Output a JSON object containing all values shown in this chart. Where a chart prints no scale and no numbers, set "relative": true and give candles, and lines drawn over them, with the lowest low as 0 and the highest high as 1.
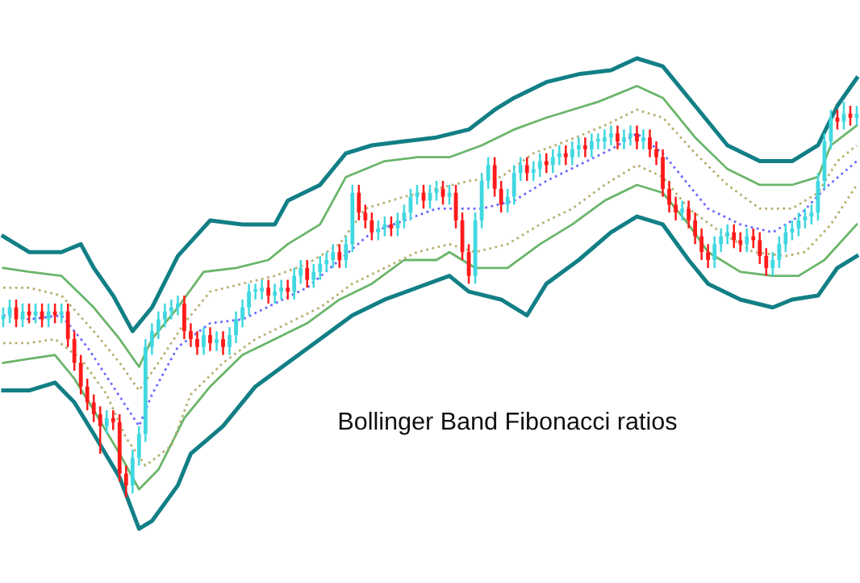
{
  "chart_data": {
    "type": "candlestick",
    "relative": true,
    "tick_labels": false,
    "legend": false,
    "annotations": [
      "Bollinger Band Fibonacci ratios"
    ],
    "categories": [
      null,
      null,
      null,
      null,
      null,
      null,
      null,
      null,
      null,
      null,
      null,
      null,
      null,
      null,
      null,
      null,
      null,
      null,
      null,
      null,
      null,
      null,
      null,
      null,
      null,
      null,
      null,
      null,
      null,
      null,
      null,
      null,
      null,
      null,
      null,
      null,
      null,
      null,
      null,
      null,
      null,
      null,
      null,
      null,
      null,
      null,
      null,
      null,
      null,
      null,
      null,
      null,
      null,
      null,
      null,
      null,
      null,
      null,
      null,
      null,
      null,
      null,
      null,
      null,
      null,
      null,
      null,
      null,
      null,
      null,
      null,
      null,
      null,
      null,
      null,
      null,
      null,
      null,
      null,
      null,
      null,
      null,
      null,
      null,
      null,
      null,
      null,
      null,
      null,
      null,
      null,
      null,
      null,
      null,
      null,
      null,
      null,
      null,
      null,
      null,
      null,
      null,
      null,
      null,
      null,
      null,
      null,
      null,
      null,
      null,
      null,
      null,
      null,
      null,
      null,
      null,
      null,
      null,
      null,
      null,
      null,
      null,
      null,
      null,
      null,
      null,
      null,
      null,
      null,
      null,
      null,
      null,
      null
    ],
    "colors": [
      "#40d8e0",
      "#40d8e0",
      "#ff1a1a",
      "#40d8e0",
      "#ff1a1a",
      "#40d8e0",
      "#ff1a1a",
      "#40d8e0",
      "#ff1a1a",
      "#40d8e0",
      "#ff1a1a",
      "#ff1a1a",
      "#ff1a1a",
      "#ff1a1a",
      "#ff1a1a",
      "#ff1a1a",
      "#40d8e0",
      "#ff1a1a",
      "#ff1a1a",
      "#ff1a1a",
      "#40d8e0",
      "#40d8e0",
      "#40d8e0",
      "#40d8e0",
      "#40d8e0",
      "#40d8e0",
      "#40d8e0",
      "#40d8e0",
      "#ff1a1a",
      "#ff1a1a",
      "#ff1a1a",
      "#40d8e0",
      "#ff1a1a",
      "#40d8e0",
      "#ff1a1a",
      "#40d8e0",
      "#40d8e0",
      "#40d8e0",
      "#40d8e0",
      "#40d8e0",
      "#40d8e0",
      "#ff1a1a",
      "#40d8e0",
      "#40d8e0",
      "#ff1a1a",
      "#40d8e0",
      "#40d8e0",
      "#ff1a1a",
      "#40d8e0",
      "#40d8e0",
      "#40d8e0",
      "#40d8e0",
      "#ff1a1a",
      "#40d8e0",
      "#40d8e0",
      "#ff1a1a",
      "#ff1a1a",
      "#ff1a1a",
      "#40d8e0",
      "#40d8e0",
      "#ff1a1a",
      "#40d8e0",
      "#40d8e0",
      "#40d8e0",
      "#40d8e0",
      "#ff1a1a",
      "#40d8e0",
      "#40d8e0",
      "#ff1a1a",
      "#40d8e0",
      "#ff1a1a",
      "#ff1a1a",
      "#ff1a1a",
      "#40d8e0",
      "#40d8e0",
      "#40d8e0",
      "#ff1a1a",
      "#ff1a1a",
      "#40d8e0",
      "#40d8e0",
      "#40d8e0",
      "#ff1a1a",
      "#40d8e0",
      "#40d8e0",
      "#ff1a1a",
      "#40d8e0",
      "#40d8e0",
      "#ff1a1a",
      "#40d8e0",
      "#40d8e0",
      "#ff1a1a",
      "#40d8e0",
      "#40d8e0",
      "#40d8e0",
      "#40d8e0",
      "#ff1a1a",
      "#40d8e0",
      "#40d8e0",
      "#ff1a1a",
      "#40d8e0",
      "#ff1a1a",
      "#ff1a1a",
      "#ff1a1a",
      "#ff1a1a",
      "#ff1a1a",
      "#40d8e0",
      "#ff1a1a",
      "#ff1a1a",
      "#ff1a1a",
      "#ff1a1a",
      "#40d8e0",
      "#40d8e0",
      "#40d8e0",
      "#ff1a1a",
      "#ff1a1a",
      "#40d8e0",
      "#ff1a1a",
      "#ff1a1a",
      "#ff1a1a",
      "#40d8e0",
      "#40d8e0",
      "#40d8e0",
      "#40d8e0",
      "#40d8e0",
      "#40d8e0",
      "#40d8e0",
      "#40d8e0",
      "#40d8e0",
      "#40d8e0",
      "#ff1a1a",
      "#40d8e0",
      "#ff1a1a",
      "#40d8e0"
    ],
    "ohlc": [
      [
        0.45,
        0.48,
        0.43,
        0.46
      ],
      [
        0.46,
        0.5,
        0.44,
        0.48
      ],
      [
        0.48,
        0.5,
        0.43,
        0.45
      ],
      [
        0.45,
        0.49,
        0.43,
        0.47
      ],
      [
        0.47,
        0.49,
        0.44,
        0.46
      ],
      [
        0.46,
        0.49,
        0.44,
        0.47
      ],
      [
        0.47,
        0.49,
        0.43,
        0.45
      ],
      [
        0.45,
        0.49,
        0.43,
        0.47
      ],
      [
        0.47,
        0.49,
        0.44,
        0.46
      ],
      [
        0.46,
        0.49,
        0.44,
        0.47
      ],
      [
        0.47,
        0.49,
        0.38,
        0.4
      ],
      [
        0.4,
        0.42,
        0.32,
        0.34
      ],
      [
        0.34,
        0.36,
        0.26,
        0.28
      ],
      [
        0.28,
        0.3,
        0.22,
        0.24
      ],
      [
        0.24,
        0.26,
        0.19,
        0.21
      ],
      [
        0.21,
        0.23,
        0.11,
        0.18
      ],
      [
        0.18,
        0.22,
        0.16,
        0.2
      ],
      [
        0.2,
        0.22,
        0.17,
        0.19
      ],
      [
        0.19,
        0.21,
        0.04,
        0.06
      ],
      [
        0.06,
        0.08,
        0.0,
        0.03
      ],
      [
        0.03,
        0.12,
        0.01,
        0.1
      ],
      [
        0.1,
        0.18,
        0.08,
        0.16
      ],
      [
        0.16,
        0.4,
        0.14,
        0.38
      ],
      [
        0.38,
        0.44,
        0.36,
        0.42
      ],
      [
        0.42,
        0.47,
        0.4,
        0.45
      ],
      [
        0.45,
        0.49,
        0.43,
        0.47
      ],
      [
        0.47,
        0.5,
        0.45,
        0.48
      ],
      [
        0.48,
        0.51,
        0.46,
        0.49
      ],
      [
        0.49,
        0.51,
        0.4,
        0.42
      ],
      [
        0.42,
        0.44,
        0.38,
        0.4
      ],
      [
        0.4,
        0.42,
        0.36,
        0.38
      ],
      [
        0.38,
        0.43,
        0.36,
        0.41
      ],
      [
        0.41,
        0.43,
        0.37,
        0.39
      ],
      [
        0.39,
        0.42,
        0.37,
        0.4
      ],
      [
        0.4,
        0.42,
        0.36,
        0.38
      ],
      [
        0.38,
        0.43,
        0.36,
        0.41
      ],
      [
        0.41,
        0.47,
        0.39,
        0.45
      ],
      [
        0.45,
        0.5,
        0.43,
        0.48
      ],
      [
        0.48,
        0.54,
        0.46,
        0.52
      ],
      [
        0.52,
        0.54,
        0.5,
        0.52
      ],
      [
        0.52,
        0.55,
        0.5,
        0.53
      ],
      [
        0.53,
        0.55,
        0.49,
        0.51
      ],
      [
        0.51,
        0.54,
        0.49,
        0.52
      ],
      [
        0.52,
        0.55,
        0.5,
        0.53
      ],
      [
        0.53,
        0.55,
        0.5,
        0.52
      ],
      [
        0.52,
        0.58,
        0.5,
        0.56
      ],
      [
        0.56,
        0.6,
        0.54,
        0.58
      ],
      [
        0.58,
        0.6,
        0.53,
        0.55
      ],
      [
        0.55,
        0.59,
        0.53,
        0.57
      ],
      [
        0.57,
        0.61,
        0.55,
        0.59
      ],
      [
        0.59,
        0.62,
        0.57,
        0.6
      ],
      [
        0.6,
        0.64,
        0.58,
        0.62
      ],
      [
        0.62,
        0.64,
        0.58,
        0.6
      ],
      [
        0.6,
        0.66,
        0.58,
        0.64
      ],
      [
        0.64,
        0.79,
        0.62,
        0.77
      ],
      [
        0.77,
        0.79,
        0.7,
        0.72
      ],
      [
        0.72,
        0.74,
        0.68,
        0.7
      ],
      [
        0.7,
        0.72,
        0.65,
        0.67
      ],
      [
        0.67,
        0.7,
        0.65,
        0.68
      ],
      [
        0.68,
        0.71,
        0.66,
        0.69
      ],
      [
        0.69,
        0.71,
        0.66,
        0.68
      ],
      [
        0.68,
        0.72,
        0.66,
        0.7
      ],
      [
        0.7,
        0.74,
        0.68,
        0.72
      ],
      [
        0.72,
        0.78,
        0.7,
        0.76
      ],
      [
        0.76,
        0.79,
        0.74,
        0.77
      ],
      [
        0.77,
        0.79,
        0.73,
        0.75
      ],
      [
        0.75,
        0.79,
        0.73,
        0.77
      ],
      [
        0.77,
        0.8,
        0.75,
        0.78
      ],
      [
        0.78,
        0.8,
        0.74,
        0.76
      ],
      [
        0.76,
        0.79,
        0.74,
        0.77
      ],
      [
        0.77,
        0.79,
        0.68,
        0.7
      ],
      [
        0.7,
        0.72,
        0.6,
        0.62
      ],
      [
        0.62,
        0.64,
        0.54,
        0.56
      ],
      [
        0.56,
        0.72,
        0.54,
        0.7
      ],
      [
        0.7,
        0.82,
        0.68,
        0.8
      ],
      [
        0.8,
        0.86,
        0.78,
        0.84
      ],
      [
        0.84,
        0.86,
        0.76,
        0.78
      ],
      [
        0.78,
        0.8,
        0.72,
        0.74
      ],
      [
        0.74,
        0.78,
        0.72,
        0.76
      ],
      [
        0.76,
        0.84,
        0.74,
        0.82
      ],
      [
        0.82,
        0.86,
        0.8,
        0.84
      ],
      [
        0.84,
        0.86,
        0.8,
        0.82
      ],
      [
        0.82,
        0.85,
        0.8,
        0.83
      ],
      [
        0.83,
        0.87,
        0.81,
        0.85
      ],
      [
        0.85,
        0.87,
        0.82,
        0.84
      ],
      [
        0.84,
        0.88,
        0.82,
        0.86
      ],
      [
        0.86,
        0.89,
        0.84,
        0.87
      ],
      [
        0.87,
        0.89,
        0.84,
        0.86
      ],
      [
        0.86,
        0.9,
        0.84,
        0.88
      ],
      [
        0.88,
        0.91,
        0.86,
        0.89
      ],
      [
        0.89,
        0.91,
        0.86,
        0.88
      ],
      [
        0.88,
        0.92,
        0.86,
        0.9
      ],
      [
        0.9,
        0.92,
        0.88,
        0.9
      ],
      [
        0.9,
        0.93,
        0.88,
        0.91
      ],
      [
        0.91,
        0.94,
        0.89,
        0.92
      ],
      [
        0.92,
        0.94,
        0.88,
        0.9
      ],
      [
        0.9,
        0.93,
        0.88,
        0.91
      ],
      [
        0.91,
        0.94,
        0.89,
        0.92
      ],
      [
        0.92,
        0.94,
        0.88,
        0.9
      ],
      [
        0.9,
        0.93,
        0.88,
        0.91
      ],
      [
        0.91,
        0.93,
        0.86,
        0.88
      ],
      [
        0.88,
        0.9,
        0.84,
        0.86
      ],
      [
        0.86,
        0.88,
        0.76,
        0.78
      ],
      [
        0.78,
        0.8,
        0.72,
        0.74
      ],
      [
        0.74,
        0.76,
        0.7,
        0.72
      ],
      [
        0.72,
        0.75,
        0.7,
        0.73
      ],
      [
        0.73,
        0.75,
        0.68,
        0.7
      ],
      [
        0.7,
        0.72,
        0.64,
        0.66
      ],
      [
        0.66,
        0.68,
        0.6,
        0.62
      ],
      [
        0.62,
        0.64,
        0.58,
        0.6
      ],
      [
        0.6,
        0.66,
        0.58,
        0.64
      ],
      [
        0.64,
        0.68,
        0.62,
        0.66
      ],
      [
        0.66,
        0.69,
        0.64,
        0.67
      ],
      [
        0.67,
        0.69,
        0.63,
        0.65
      ],
      [
        0.65,
        0.67,
        0.62,
        0.64
      ],
      [
        0.64,
        0.68,
        0.62,
        0.66
      ],
      [
        0.66,
        0.68,
        0.63,
        0.65
      ],
      [
        0.65,
        0.67,
        0.59,
        0.61
      ],
      [
        0.61,
        0.63,
        0.56,
        0.58
      ],
      [
        0.58,
        0.62,
        0.56,
        0.6
      ],
      [
        0.6,
        0.66,
        0.58,
        0.64
      ],
      [
        0.64,
        0.69,
        0.62,
        0.67
      ],
      [
        0.67,
        0.7,
        0.65,
        0.68
      ],
      [
        0.68,
        0.72,
        0.66,
        0.7
      ],
      [
        0.7,
        0.73,
        0.68,
        0.71
      ],
      [
        0.71,
        0.74,
        0.69,
        0.72
      ],
      [
        0.72,
        0.82,
        0.7,
        0.8
      ],
      [
        0.8,
        0.92,
        0.78,
        0.9
      ],
      [
        0.9,
        0.98,
        0.88,
        0.96
      ],
      [
        0.96,
        0.98,
        0.93,
        0.95
      ],
      [
        0.95,
        1.0,
        0.93,
        0.97
      ],
      [
        0.97,
        0.99,
        0.94,
        0.96
      ],
      [
        0.96,
        0.99,
        0.94,
        0.97
      ]
    ],
    "series": [
      {
        "type": "line",
        "color": "#127f86",
        "line_style": "solid",
        "values": [
          0.66,
          null,
          null,
          null,
          0.62,
          null,
          null,
          null,
          null,
          0.62,
          null,
          null,
          0.64,
          null,
          0.58,
          null,
          null,
          0.51,
          null,
          null,
          0.42,
          null,
          null,
          0.48,
          null,
          null,
          null,
          0.61,
          null,
          null,
          null,
          null,
          0.7,
          null,
          null,
          null,
          null,
          0.69,
          null,
          null,
          null,
          null,
          0.69,
          null,
          0.75,
          null,
          null,
          null,
          null,
          0.79,
          null,
          null,
          null,
          0.87,
          null,
          null,
          null,
          0.89,
          null,
          null,
          null,
          null,
          0.9,
          null,
          null,
          null,
          null,
          0.91,
          null,
          null,
          null,
          null,
          0.93,
          null,
          null,
          null,
          0.98,
          null,
          null,
          1.01,
          null,
          null,
          null,
          null,
          1.05,
          null,
          null,
          null,
          null,
          1.07,
          null,
          null,
          null,
          null,
          1.08,
          null,
          null,
          null,
          1.11,
          null,
          null,
          null,
          1.09,
          null,
          null,
          null,
          null,
          0.99,
          null,
          null,
          null,
          null,
          0.89,
          null,
          null,
          null,
          null,
          0.85,
          null,
          null,
          null,
          null,
          0.85,
          null,
          null,
          null,
          0.89,
          null,
          null,
          0.99,
          null,
          null,
          1.06
        ]
      },
      {
        "type": "line",
        "color": "#127f86",
        "line_style": "solid",
        "values": [
          0.27,
          null,
          null,
          null,
          0.27,
          null,
          null,
          null,
          0.29,
          null,
          null,
          0.24,
          null,
          null,
          0.16,
          null,
          null,
          null,
          0.05,
          null,
          null,
          -0.08,
          null,
          -0.06,
          null,
          null,
          null,
          0.03,
          null,
          0.11,
          null,
          null,
          null,
          null,
          0.18,
          null,
          null,
          null,
          null,
          0.28,
          null,
          null,
          null,
          null,
          0.34,
          null,
          null,
          null,
          null,
          0.4,
          null,
          null,
          null,
          null,
          0.46,
          null,
          null,
          null,
          null,
          0.5,
          null,
          null,
          null,
          null,
          0.53,
          null,
          null,
          null,
          null,
          0.56,
          null,
          null,
          0.52,
          null,
          null,
          null,
          null,
          0.5,
          null,
          null,
          null,
          0.46,
          null,
          null,
          0.54,
          null,
          null,
          null,
          null,
          0.6,
          null,
          null,
          null,
          null,
          0.67,
          null,
          null,
          null,
          0.71,
          null,
          null,
          null,
          0.69,
          null,
          null,
          null,
          0.6,
          null,
          null,
          0.54,
          null,
          null,
          null,
          null,
          0.5,
          null,
          null,
          null,
          null,
          0.48,
          null,
          null,
          0.5,
          null,
          null,
          null,
          0.51,
          null,
          null,
          0.58,
          null,
          null,
          0.61
        ]
      },
      {
        "type": "line",
        "color": "#6ab56a",
        "line_style": "solid",
        "values": [
          0.58,
          null,
          null,
          null,
          0.57,
          null,
          null,
          null,
          null,
          0.56,
          null,
          null,
          null,
          null,
          0.48,
          null,
          null,
          null,
          0.4,
          null,
          null,
          0.33,
          null,
          0.4,
          null,
          null,
          null,
          0.48,
          null,
          null,
          null,
          0.57,
          null,
          null,
          null,
          null,
          0.58,
          null,
          null,
          null,
          null,
          0.6,
          null,
          null,
          0.64,
          null,
          null,
          null,
          null,
          0.69,
          null,
          null,
          null,
          0.81,
          null,
          null,
          null,
          null,
          null,
          0.85,
          null,
          null,
          null,
          null,
          0.86,
          null,
          null,
          null,
          null,
          0.86,
          null,
          null,
          null,
          null,
          0.89,
          null,
          null,
          null,
          null,
          0.93,
          null,
          null,
          null,
          null,
          0.96,
          null,
          null,
          null,
          null,
          null,
          null,
          null,
          1.0,
          null,
          null,
          null,
          null,
          null,
          1.04,
          null,
          null,
          null,
          1.01,
          null,
          null,
          null,
          null,
          0.91,
          null,
          null,
          null,
          null,
          0.83,
          null,
          null,
          null,
          null,
          0.79,
          null,
          null,
          null,
          null,
          0.79,
          null,
          null,
          null,
          0.81,
          null,
          0.89,
          null,
          null,
          null,
          0.94
        ]
      },
      {
        "type": "line",
        "color": "#6ab56a",
        "line_style": "solid",
        "values": [
          0.34,
          null,
          null,
          null,
          0.35,
          null,
          null,
          null,
          0.36,
          null,
          null,
          0.3,
          null,
          null,
          0.22,
          null,
          null,
          null,
          0.11,
          null,
          null,
          0.02,
          null,
          null,
          0.07,
          null,
          null,
          null,
          0.2,
          null,
          null,
          null,
          0.28,
          null,
          null,
          null,
          null,
          0.36,
          null,
          null,
          null,
          null,
          0.4,
          null,
          null,
          null,
          null,
          0.44,
          null,
          null,
          null,
          null,
          0.5,
          null,
          null,
          null,
          null,
          0.54,
          null,
          null,
          null,
          null,
          0.6,
          null,
          null,
          null,
          null,
          0.6,
          null,
          0.62,
          null,
          null,
          null,
          0.58,
          null,
          null,
          null,
          null,
          0.58,
          null,
          null,
          null,
          null,
          0.64,
          null,
          null,
          null,
          null,
          0.69,
          null,
          null,
          null,
          null,
          0.75,
          null,
          null,
          null,
          null,
          0.79,
          null,
          null,
          null,
          0.77,
          null,
          null,
          null,
          0.69,
          null,
          null,
          0.62,
          null,
          null,
          null,
          null,
          0.57,
          null,
          null,
          null,
          null,
          0.56,
          null,
          null,
          null,
          0.56,
          null,
          null,
          null,
          0.6,
          null,
          null,
          null,
          null,
          0.69
        ]
      },
      {
        "type": "line",
        "color": "#b8b070",
        "line_style": "dotted",
        "values": [
          0.53,
          null,
          null,
          null,
          0.53,
          null,
          null,
          null,
          null,
          0.51,
          null,
          null,
          null,
          null,
          0.42,
          null,
          null,
          null,
          0.34,
          null,
          null,
          0.27,
          null,
          null,
          0.34,
          null,
          null,
          null,
          0.44,
          null,
          null,
          null,
          0.52,
          null,
          null,
          null,
          null,
          0.54,
          null,
          null,
          null,
          null,
          0.56,
          null,
          null,
          null,
          null,
          0.59,
          null,
          null,
          null,
          null,
          0.64,
          null,
          null,
          null,
          0.73,
          null,
          null,
          null,
          null,
          null,
          0.76,
          null,
          null,
          null,
          null,
          0.78,
          null,
          null,
          null,
          null,
          0.8,
          null,
          null,
          null,
          null,
          0.81,
          null,
          null,
          null,
          null,
          0.87,
          null,
          null,
          null,
          null,
          0.9,
          null,
          null,
          null,
          null,
          null,
          0.94,
          null,
          null,
          null,
          null,
          0.98,
          null,
          null,
          null,
          0.96,
          null,
          null,
          null,
          null,
          0.87,
          null,
          null,
          null,
          null,
          0.79,
          null,
          null,
          null,
          null,
          0.73,
          null,
          null,
          null,
          null,
          0.73,
          null,
          null,
          null,
          0.77,
          null,
          null,
          0.85,
          null,
          null,
          0.89
        ]
      },
      {
        "type": "line",
        "color": "#b8b070",
        "line_style": "dotted",
        "values": [
          0.39,
          null,
          null,
          null,
          0.39,
          null,
          null,
          null,
          0.4,
          null,
          null,
          null,
          0.35,
          null,
          null,
          null,
          0.26,
          null,
          null,
          0.15,
          null,
          null,
          0.08,
          null,
          null,
          null,
          0.13,
          null,
          null,
          0.26,
          null,
          null,
          null,
          null,
          0.34,
          null,
          null,
          null,
          null,
          0.4,
          null,
          null,
          null,
          null,
          0.44,
          null,
          null,
          null,
          null,
          0.48,
          null,
          null,
          null,
          null,
          0.54,
          null,
          null,
          null,
          null,
          0.58,
          null,
          null,
          null,
          null,
          0.62,
          null,
          null,
          null,
          null,
          0.64,
          null,
          null,
          null,
          0.62,
          null,
          null,
          null,
          null,
          0.64,
          null,
          null,
          null,
          null,
          0.69,
          null,
          null,
          null,
          null,
          0.73,
          null,
          null,
          null,
          null,
          0.79,
          null,
          null,
          null,
          null,
          0.84,
          null,
          null,
          null,
          0.81,
          null,
          null,
          null,
          0.73,
          null,
          null,
          null,
          null,
          0.67,
          null,
          null,
          null,
          null,
          0.62,
          null,
          null,
          null,
          null,
          0.61,
          null,
          null,
          0.62,
          null,
          null,
          null,
          0.69,
          null,
          null,
          null,
          0.79
        ]
      },
      {
        "type": "line",
        "color": "#6a6aff",
        "line_style": "dotted",
        "values": [
          0.46,
          null,
          null,
          null,
          0.45,
          null,
          null,
          null,
          null,
          0.46,
          null,
          null,
          null,
          0.38,
          null,
          null,
          null,
          0.28,
          null,
          null,
          null,
          0.18,
          null,
          0.26,
          null,
          null,
          null,
          0.38,
          null,
          null,
          null,
          null,
          0.44,
          null,
          null,
          null,
          null,
          0.45,
          null,
          null,
          null,
          null,
          0.49,
          null,
          null,
          null,
          null,
          0.53,
          null,
          null,
          null,
          null,
          0.6,
          null,
          null,
          null,
          null,
          0.67,
          null,
          null,
          null,
          null,
          0.7,
          null,
          null,
          null,
          null,
          0.73,
          null,
          null,
          null,
          0.73,
          null,
          null,
          0.73,
          null,
          null,
          null,
          null,
          0.75,
          null,
          null,
          null,
          null,
          0.8,
          null,
          null,
          null,
          null,
          0.84,
          null,
          null,
          null,
          null,
          0.88,
          null,
          null,
          null,
          0.92,
          null,
          null,
          null,
          0.87,
          null,
          null,
          null,
          0.79,
          null,
          null,
          0.73,
          null,
          null,
          null,
          null,
          0.69,
          null,
          null,
          null,
          null,
          0.67,
          null,
          null,
          null,
          0.71,
          null,
          null,
          null,
          0.78,
          null,
          null,
          null,
          null,
          0.85
        ]
      }
    ]
  }
}
